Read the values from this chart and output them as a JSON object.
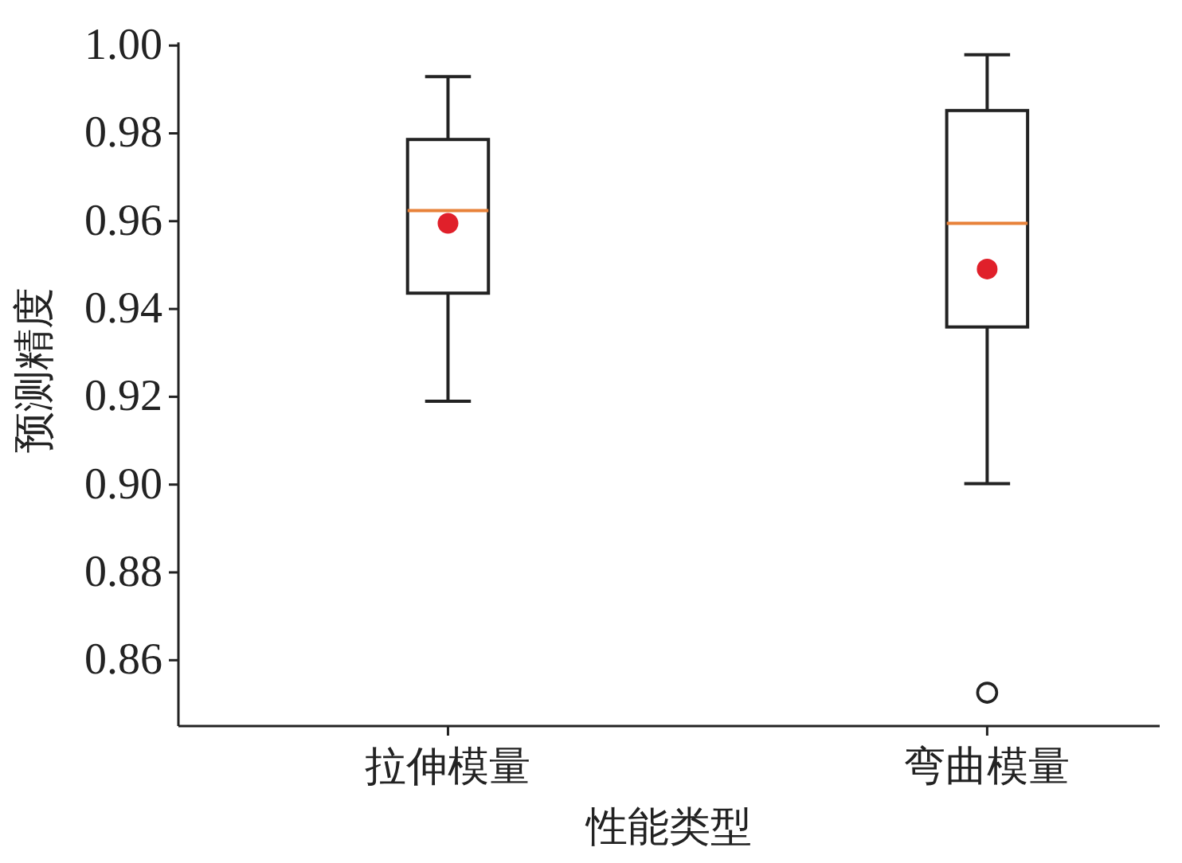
{
  "chart_data": {
    "type": "box",
    "xlabel": "性能类型",
    "ylabel": "预测精度",
    "categories": [
      "拉伸模量",
      "弯曲模量"
    ],
    "boxes": [
      {
        "low": 0.919,
        "q1": 0.9436,
        "median": 0.9624,
        "q3": 0.9786,
        "high": 0.9929,
        "mean": 0.9595
      },
      {
        "low": 0.9002,
        "q1": 0.9359,
        "median": 0.9595,
        "q3": 0.9852,
        "high": 0.9979,
        "mean": 0.9491,
        "outliers": [
          0.8526
        ]
      }
    ],
    "ylim": [
      0.845,
      1.0
    ],
    "yticks": [
      0.86,
      0.88,
      {
        "value": 0.9,
        "label": "0.90"
      },
      0.92,
      0.94,
      0.96,
      0.98,
      {
        "value": 1,
        "label": "1.00"
      }
    ]
  }
}
